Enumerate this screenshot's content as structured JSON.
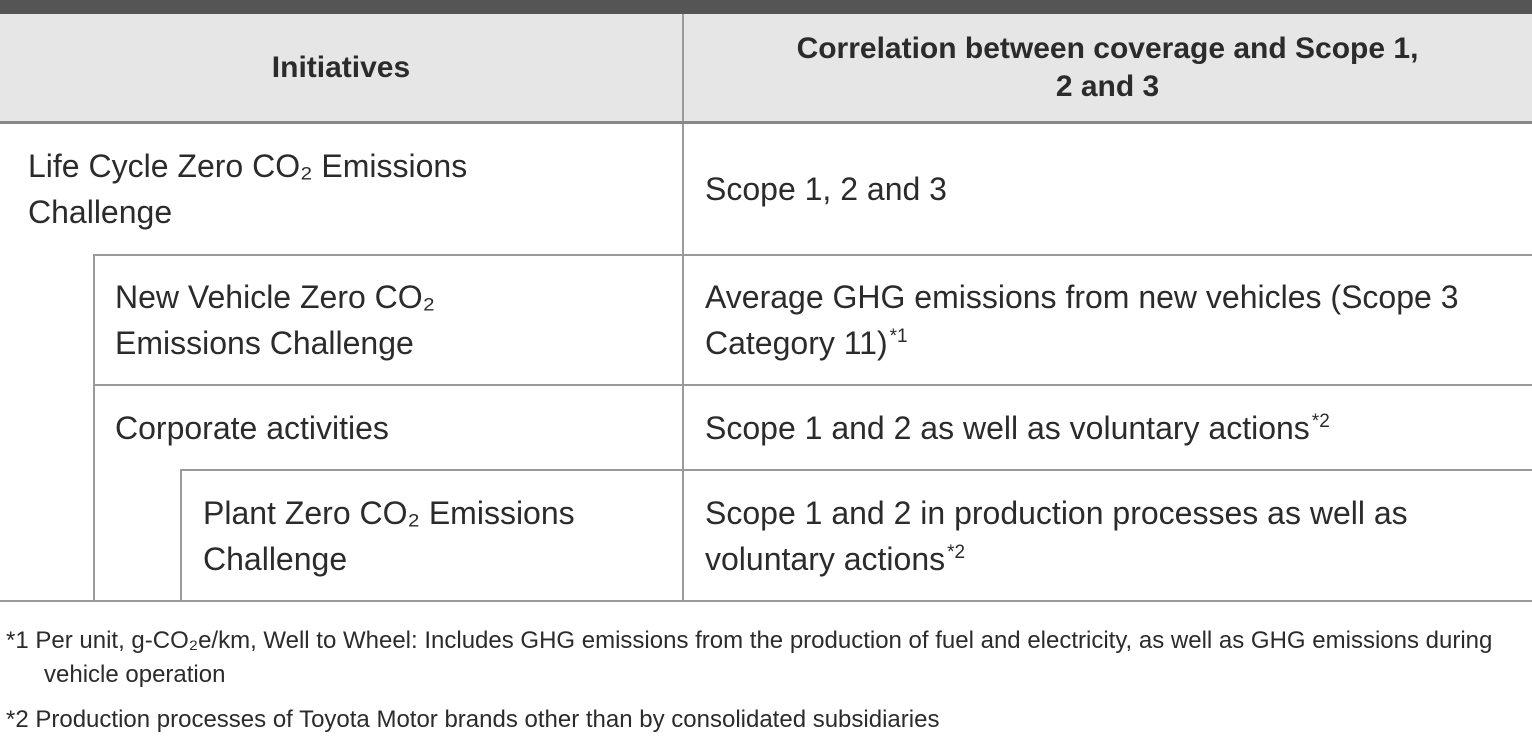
{
  "table": {
    "header": [
      "Initiatives",
      "Correlation between coverage and Scope 1, 2 and 3"
    ],
    "rows": [
      {
        "initiative": "Life Cycle Zero CO₂ Emissions Challenge",
        "coverage": "Scope 1, 2 and 3"
      },
      {
        "initiative": "New Vehicle Zero CO₂ Emissions Challenge",
        "coverage": "Average GHG emissions from new vehicles (Scope 3 Category 11)",
        "note": "*1"
      },
      {
        "initiative": "Corporate activities",
        "coverage": "Scope 1 and 2 as well as voluntary actions",
        "note": "*2"
      },
      {
        "initiative": "Plant Zero CO₂ Emissions Challenge",
        "coverage": "Scope 1 and 2 in production processes as well as voluntary actions",
        "note": "*2"
      }
    ]
  },
  "footnotes": [
    {
      "mark": "*1",
      "text": "Per unit, g-CO₂e/km, Well to Wheel: Includes GHG emissions from the production of fuel and electricity, as well as GHG emissions during vehicle operation"
    },
    {
      "mark": "*2",
      "text": "Production processes of Toyota Motor brands other than by consolidated subsidiaries"
    }
  ]
}
